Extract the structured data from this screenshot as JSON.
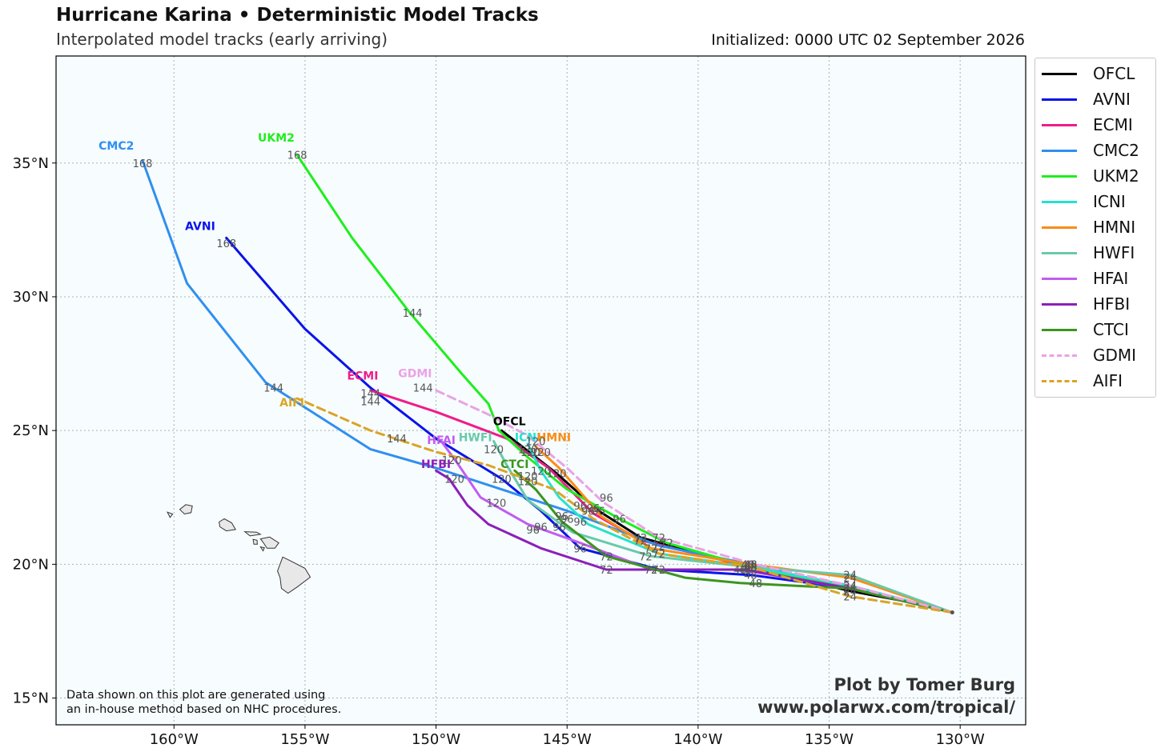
{
  "header": {
    "title": "Hurricane Karina • Deterministic Model Tracks",
    "subtitle": "Interpolated model tracks (early arriving)",
    "initialized": "Initialized: 0000 UTC 02 September 2026"
  },
  "footer": {
    "disclaimer_line1": "Data shown on this plot are generated using",
    "disclaimer_line2": "an in-house method based on NHC procedures.",
    "credit_line1": "Plot by Tomer Burg",
    "credit_line2": "www.polarwx.com/tropical/"
  },
  "map": {
    "lon_range": [
      -164.5,
      -127.5
    ],
    "lat_range": [
      14,
      39
    ],
    "lon_ticks": [
      -160,
      -155,
      -150,
      -145,
      -140,
      -135,
      -130
    ],
    "lon_tick_labels": [
      "160°W",
      "155°W",
      "150°W",
      "145°W",
      "140°W",
      "135°W",
      "130°W"
    ],
    "lat_ticks": [
      15,
      20,
      25,
      30,
      35
    ],
    "lat_tick_labels": [
      "15°N",
      "20°N",
      "25°N",
      "30°N",
      "35°N"
    ],
    "grid": true,
    "ocean_color": "#f7fcfe",
    "land_color": "#e8e8e8",
    "start_point": [
      -130.3,
      18.2
    ]
  },
  "models": [
    {
      "name": "OFCL",
      "color": "#000000",
      "dashed": false,
      "track": [
        [
          -130.3,
          18.2
        ],
        [
          -132,
          18.6
        ],
        [
          -134.2,
          19.0
        ],
        [
          -138,
          19.9
        ],
        [
          -142.2,
          21.0
        ],
        [
          -143.8,
          22.0
        ],
        [
          -145.4,
          23.4
        ],
        [
          -147.5,
          25.0
        ]
      ],
      "hour_labels": [
        [
          "24",
          -134.2,
          19.0
        ],
        [
          "48",
          -138,
          19.9
        ],
        [
          "72",
          -142.2,
          21.0
        ],
        [
          "96",
          -143.8,
          22.0
        ],
        [
          "120",
          -145.4,
          23.4
        ]
      ],
      "name_label": [
        -147.2,
        25.2
      ]
    },
    {
      "name": "AVNI",
      "color": "#0a14e8",
      "dashed": false,
      "track": [
        [
          -130.3,
          18.2
        ],
        [
          -134.2,
          19.1
        ],
        [
          -138,
          19.6
        ],
        [
          -141.5,
          19.8
        ],
        [
          -144.5,
          20.6
        ],
        [
          -146.0,
          22.0
        ],
        [
          -147.5,
          23.2
        ],
        [
          -150,
          24.7
        ],
        [
          -152.5,
          26.6
        ],
        [
          -155,
          28.8
        ],
        [
          -158,
          32.2
        ]
      ],
      "hour_labels": [
        [
          "24",
          -134.2,
          19.1
        ],
        [
          "48",
          -138,
          19.6
        ],
        [
          "72",
          -141.5,
          19.8
        ],
        [
          "96",
          -144.5,
          20.6
        ],
        [
          "120",
          -147.5,
          23.2
        ],
        [
          "144",
          -152.5,
          26.1
        ],
        [
          "168",
          -158,
          32.0
        ]
      ],
      "name_label": [
        -159,
        32.5
      ]
    },
    {
      "name": "ECMI",
      "color": "#f01c8a",
      "dashed": false,
      "track": [
        [
          -130.3,
          18.2
        ],
        [
          -134.2,
          19.2
        ],
        [
          -138,
          19.9
        ],
        [
          -142.2,
          20.9
        ],
        [
          -144.0,
          21.9
        ],
        [
          -145.7,
          23.6
        ],
        [
          -147.3,
          24.7
        ],
        [
          -150,
          25.7
        ],
        [
          -152.5,
          26.5
        ]
      ],
      "hour_labels": [
        [
          "24",
          -134.2,
          19.2
        ],
        [
          "48",
          -138,
          19.9
        ],
        [
          "72",
          -142.2,
          20.9
        ],
        [
          "96",
          -144.0,
          22.1
        ],
        [
          "120",
          -146.4,
          24.2
        ],
        [
          "144",
          -152.5,
          26.4
        ]
      ],
      "name_label": [
        -152.8,
        26.9
      ]
    },
    {
      "name": "CMC2",
      "color": "#2f8ff0",
      "dashed": false,
      "track": [
        [
          -130.3,
          18.2
        ],
        [
          -134.2,
          19.1
        ],
        [
          -138,
          20.0
        ],
        [
          -141.5,
          20.7
        ],
        [
          -145,
          22.0
        ],
        [
          -147.5,
          22.8
        ],
        [
          -150,
          23.6
        ],
        [
          -152.5,
          24.3
        ],
        [
          -156.5,
          26.8
        ],
        [
          -159.5,
          30.5
        ],
        [
          -161.2,
          35.1
        ]
      ],
      "hour_labels": [
        [
          "24",
          -134.2,
          19.1
        ],
        [
          "48",
          -138,
          20.0
        ],
        [
          "72",
          -141.5,
          20.7
        ],
        [
          "96",
          -145.0,
          21.7
        ],
        [
          "120",
          -147.7,
          22.3
        ],
        [
          "144",
          -156.2,
          26.6
        ],
        [
          "168",
          -161.2,
          35.0
        ]
      ],
      "name_label": [
        -162.2,
        35.5
      ]
    },
    {
      "name": "UKM2",
      "color": "#1eee1e",
      "dashed": false,
      "track": [
        [
          -130.3,
          18.2
        ],
        [
          -134.2,
          19.1
        ],
        [
          -138,
          19.9
        ],
        [
          -141.2,
          20.8
        ],
        [
          -143,
          21.7
        ],
        [
          -145,
          22.8
        ],
        [
          -146.5,
          24.0
        ],
        [
          -147.6,
          25.0
        ],
        [
          -148,
          26.0
        ],
        [
          -149,
          27.1
        ],
        [
          -151,
          29.4
        ],
        [
          -153.2,
          32.2
        ],
        [
          -155.3,
          35.3
        ]
      ],
      "hour_labels": [
        [
          "24",
          -134.2,
          19.1
        ],
        [
          "48",
          -138,
          19.9
        ],
        [
          "72",
          -141.2,
          20.8
        ],
        [
          "96",
          -143.0,
          21.7
        ],
        [
          "120",
          -146.5,
          24.3
        ],
        [
          "144",
          -150.9,
          29.4
        ],
        [
          "168",
          -155.3,
          35.3
        ]
      ],
      "name_label": [
        -156.1,
        35.8
      ]
    },
    {
      "name": "ICNI",
      "color": "#26e2cc",
      "dashed": false,
      "track": [
        [
          -130.3,
          18.2
        ],
        [
          -134.2,
          19.2
        ],
        [
          -138,
          19.9
        ],
        [
          -141.5,
          20.4
        ],
        [
          -144.2,
          21.5
        ],
        [
          -145.3,
          22.5
        ],
        [
          -146.0,
          23.5
        ],
        [
          -146.5,
          24.5
        ]
      ],
      "hour_labels": [
        [
          "24",
          -134.2,
          19.2
        ],
        [
          "48",
          -138,
          19.9
        ],
        [
          "72",
          -141.5,
          20.4
        ],
        [
          "96",
          -144.5,
          21.6
        ],
        [
          "120",
          -146.0,
          23.5
        ]
      ],
      "name_label": [
        -146.5,
        24.6
      ]
    },
    {
      "name": "HMNI",
      "color": "#fb8c16",
      "dashed": false,
      "track": [
        [
          -130.3,
          18.2
        ],
        [
          -134.2,
          19.5
        ],
        [
          -138,
          20.0
        ],
        [
          -141.8,
          20.6
        ],
        [
          -143.7,
          21.8
        ],
        [
          -145.3,
          23.6
        ],
        [
          -146.2,
          24.4
        ]
      ],
      "hour_labels": [
        [
          "24",
          -134.2,
          19.5
        ],
        [
          "48",
          -138,
          20.0
        ],
        [
          "72",
          -141.8,
          20.6
        ],
        [
          "96",
          -144.2,
          22.0
        ],
        [
          "120",
          -146.0,
          24.2
        ]
      ],
      "name_label": [
        -145.5,
        24.6
      ]
    },
    {
      "name": "HWFI",
      "color": "#69c9a9",
      "dashed": false,
      "track": [
        [
          -130.3,
          18.2
        ],
        [
          -134.2,
          19.6
        ],
        [
          -138,
          19.9
        ],
        [
          -141.8,
          20.3
        ],
        [
          -144.8,
          21.2
        ],
        [
          -146.5,
          22.4
        ],
        [
          -147.3,
          23.7
        ],
        [
          -147.8,
          24.6
        ]
      ],
      "hour_labels": [
        [
          "24",
          -134.2,
          19.6
        ],
        [
          "48",
          -138,
          19.9
        ],
        [
          "72",
          -142.0,
          20.3
        ],
        [
          "96",
          -145.3,
          21.4
        ],
        [
          "120",
          -147.8,
          24.3
        ]
      ],
      "name_label": [
        -148.5,
        24.6
      ]
    },
    {
      "name": "HFAI",
      "color": "#c25cf0",
      "dashed": false,
      "track": [
        [
          -130.3,
          18.2
        ],
        [
          -134.2,
          19.1
        ],
        [
          -138.4,
          19.8
        ],
        [
          -141.8,
          19.8
        ],
        [
          -144.5,
          20.8
        ],
        [
          -146.5,
          21.5
        ],
        [
          -148.3,
          22.5
        ],
        [
          -149.2,
          23.8
        ],
        [
          -149.8,
          24.6
        ]
      ],
      "hour_labels": [
        [
          "24",
          -134.2,
          19.1
        ],
        [
          "48",
          -138.4,
          19.8
        ],
        [
          "72",
          -141.8,
          19.8
        ],
        [
          "96",
          -146.0,
          21.4
        ],
        [
          "120",
          -149.4,
          23.9
        ]
      ],
      "name_label": [
        -149.8,
        24.5
      ]
    },
    {
      "name": "HFBI",
      "color": "#8c1fb8",
      "dashed": false,
      "track": [
        [
          -130.3,
          18.2
        ],
        [
          -134.2,
          19.1
        ],
        [
          -138.2,
          19.8
        ],
        [
          -143.5,
          19.8
        ],
        [
          -146,
          20.6
        ],
        [
          -148,
          21.5
        ],
        [
          -148.8,
          22.2
        ],
        [
          -149.5,
          23.2
        ],
        [
          -150,
          23.5
        ]
      ],
      "hour_labels": [
        [
          "24",
          -134.2,
          19.1
        ],
        [
          "48",
          -138.2,
          19.8
        ],
        [
          "72",
          -143.5,
          19.8
        ],
        [
          "96",
          -146.3,
          21.3
        ],
        [
          "120",
          -149.3,
          23.2
        ]
      ],
      "name_label": [
        -150,
        23.6
      ]
    },
    {
      "name": "CTCI",
      "color": "#3c951e",
      "dashed": false,
      "track": [
        [
          -130.3,
          18.2
        ],
        [
          -134.2,
          19.1
        ],
        [
          -138.4,
          19.3
        ],
        [
          -140.5,
          19.5
        ],
        [
          -143.5,
          20.3
        ],
        [
          -145.2,
          21.6
        ],
        [
          -146.2,
          22.8
        ],
        [
          -147,
          23.5
        ]
      ],
      "hour_labels": [
        [
          "24",
          -134.2,
          19.1
        ],
        [
          "48",
          -137.8,
          19.3
        ],
        [
          "72",
          -143.5,
          20.3
        ],
        [
          "96",
          -145.2,
          21.8
        ],
        [
          "120",
          -146.5,
          23.1
        ]
      ],
      "name_label": [
        -147,
        23.6
      ]
    },
    {
      "name": "GDMI",
      "color": "#eba2e6",
      "dashed": true,
      "track": [
        [
          -130.3,
          18.2
        ],
        [
          -134.2,
          19.2
        ],
        [
          -137.8,
          20.0
        ],
        [
          -141.5,
          21.0
        ],
        [
          -143.6,
          22.3
        ],
        [
          -145.0,
          23.6
        ],
        [
          -146.5,
          24.8
        ],
        [
          -148,
          25.6
        ],
        [
          -150,
          26.5
        ]
      ],
      "hour_labels": [
        [
          "24",
          -134.2,
          19.2
        ],
        [
          "48",
          -138.1,
          20.0
        ],
        [
          "72",
          -141.5,
          21.0
        ],
        [
          "96",
          -143.5,
          22.5
        ],
        [
          "120",
          -146.2,
          24.6
        ],
        [
          "144",
          -150.5,
          26.6
        ]
      ],
      "name_label": [
        -150.8,
        27.0
      ]
    },
    {
      "name": "AIFI",
      "color": "#dba425",
      "dashed": true,
      "track": [
        [
          -130.3,
          18.2
        ],
        [
          -134.2,
          18.8
        ],
        [
          -138,
          19.9
        ],
        [
          -141.5,
          20.4
        ],
        [
          -144,
          21.7
        ],
        [
          -145.5,
          22.8
        ],
        [
          -148,
          23.7
        ],
        [
          -150,
          24.2
        ],
        [
          -152.5,
          25.0
        ],
        [
          -155.3,
          26.2
        ]
      ],
      "hour_labels": [
        [
          "24",
          -134.2,
          18.8
        ],
        [
          "48",
          -138,
          19.9
        ],
        [
          "72",
          -141.5,
          20.4
        ],
        [
          "96",
          -144.5,
          22.2
        ],
        [
          "120",
          -146.5,
          23.3
        ],
        [
          "144",
          -151.5,
          24.7
        ]
      ],
      "name_label": [
        -155.5,
        25.9
      ]
    }
  ],
  "islands": [
    [
      [
        -159.78,
        22.05
      ],
      [
        -159.55,
        22.23
      ],
      [
        -159.3,
        22.18
      ],
      [
        -159.35,
        21.93
      ],
      [
        -159.6,
        21.88
      ]
    ],
    [
      [
        -158.28,
        21.58
      ],
      [
        -158.08,
        21.7
      ],
      [
        -157.8,
        21.55
      ],
      [
        -157.65,
        21.3
      ],
      [
        -158.0,
        21.25
      ],
      [
        -158.25,
        21.4
      ]
    ],
    [
      [
        -157.3,
        21.22
      ],
      [
        -156.85,
        21.2
      ],
      [
        -156.7,
        21.12
      ],
      [
        -157.1,
        21.06
      ]
    ],
    [
      [
        -156.98,
        20.93
      ],
      [
        -156.83,
        20.9
      ],
      [
        -156.82,
        20.75
      ],
      [
        -156.95,
        20.75
      ]
    ],
    [
      [
        -156.7,
        20.95
      ],
      [
        -156.35,
        21.02
      ],
      [
        -156.0,
        20.8
      ],
      [
        -156.15,
        20.6
      ],
      [
        -156.45,
        20.6
      ],
      [
        -156.6,
        20.82
      ]
    ],
    [
      [
        -156.7,
        20.65
      ],
      [
        -156.55,
        20.62
      ],
      [
        -156.6,
        20.5
      ]
    ],
    [
      [
        -155.85,
        20.27
      ],
      [
        -155.6,
        20.15
      ],
      [
        -155.0,
        19.85
      ],
      [
        -154.8,
        19.52
      ],
      [
        -155.3,
        19.15
      ],
      [
        -155.65,
        18.92
      ],
      [
        -155.9,
        19.1
      ],
      [
        -155.95,
        19.5
      ],
      [
        -156.05,
        19.75
      ]
    ],
    [
      [
        -160.25,
        21.95
      ],
      [
        -160.05,
        21.88
      ],
      [
        -160.15,
        21.75
      ]
    ]
  ]
}
